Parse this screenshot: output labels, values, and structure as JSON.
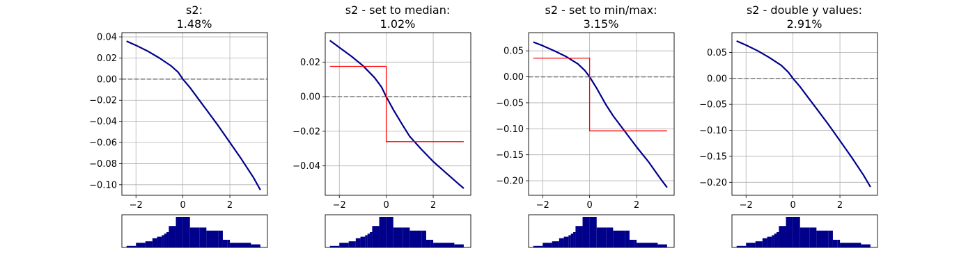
{
  "figure": {
    "background": "#ffffff",
    "colors": {
      "curve": "#00008b",
      "step": "#ff0000",
      "zero_line": "#808080",
      "grid": "#b0b0b0",
      "hist": "#00008b"
    }
  },
  "chart_data": [
    {
      "type": "line",
      "title_line1": "s2:",
      "title_line2": "1.48%",
      "xlim": [
        -2.6,
        3.6
      ],
      "ylim": [
        -0.11,
        0.044
      ],
      "xticks": [
        -2,
        0,
        2
      ],
      "yticks": [
        0.04,
        0.02,
        0.0,
        -0.02,
        -0.04,
        -0.06,
        -0.08,
        -0.1
      ],
      "ytick_labels": [
        "0.04",
        "0.02",
        "0.00",
        "−0.02",
        "−0.04",
        "−0.06",
        "−0.08",
        "−0.10"
      ],
      "grid": true,
      "series": [
        {
          "style": "curve",
          "x": [
            -2.4,
            -2.0,
            -1.5,
            -1.0,
            -0.5,
            -0.2,
            0.0,
            0.3,
            0.7,
            1.0,
            1.5,
            2.0,
            2.5,
            3.0,
            3.3
          ],
          "y": [
            0.036,
            0.032,
            0.0265,
            0.02,
            0.0125,
            0.0065,
            0.0,
            -0.008,
            -0.02,
            -0.029,
            -0.044,
            -0.06,
            -0.076,
            -0.093,
            -0.105
          ]
        }
      ]
    },
    {
      "type": "line",
      "title_line1": "s2 - set to median:",
      "title_line2": "1.02%",
      "xlim": [
        -2.6,
        3.6
      ],
      "ylim": [
        -0.057,
        0.037
      ],
      "xticks": [
        -2,
        0,
        2
      ],
      "yticks": [
        0.02,
        0.0,
        -0.02,
        -0.04
      ],
      "ytick_labels": [
        "0.02",
        "0.00",
        "−0.02",
        "−0.04"
      ],
      "grid": true,
      "series": [
        {
          "style": "curve",
          "x": [
            -2.4,
            -2.0,
            -1.5,
            -1.0,
            -0.5,
            -0.2,
            0.0,
            0.3,
            0.7,
            1.0,
            1.5,
            2.0,
            2.5,
            3.0,
            3.3
          ],
          "y": [
            0.0325,
            0.0285,
            0.0235,
            0.018,
            0.011,
            0.0055,
            0.0,
            -0.0075,
            -0.0165,
            -0.023,
            -0.0305,
            -0.0375,
            -0.0435,
            -0.0495,
            -0.053
          ]
        },
        {
          "style": "step",
          "x": [
            -2.4,
            0.0,
            0.0,
            3.3
          ],
          "y": [
            0.0175,
            0.0175,
            -0.026,
            -0.026
          ]
        }
      ]
    },
    {
      "type": "line",
      "title_line1": "s2 - set to min/max:",
      "title_line2": "3.15%",
      "xlim": [
        -2.6,
        3.6
      ],
      "ylim": [
        -0.228,
        0.085
      ],
      "xticks": [
        -2,
        0,
        2
      ],
      "yticks": [
        0.05,
        0.0,
        -0.05,
        -0.1,
        -0.15,
        -0.2
      ],
      "ytick_labels": [
        "0.05",
        "0.00",
        "−0.05",
        "−0.10",
        "−0.15",
        "−0.20"
      ],
      "grid": true,
      "series": [
        {
          "style": "curve",
          "x": [
            -2.4,
            -2.0,
            -1.5,
            -1.0,
            -0.5,
            -0.2,
            0.0,
            0.3,
            0.7,
            1.0,
            1.5,
            2.0,
            2.5,
            3.0,
            3.3
          ],
          "y": [
            0.067,
            0.06,
            0.05,
            0.039,
            0.025,
            0.012,
            0.0,
            -0.022,
            -0.054,
            -0.075,
            -0.105,
            -0.135,
            -0.163,
            -0.195,
            -0.213
          ]
        },
        {
          "style": "step",
          "x": [
            -2.4,
            0.0,
            0.0,
            3.3
          ],
          "y": [
            0.036,
            0.036,
            -0.104,
            -0.104
          ]
        }
      ]
    },
    {
      "type": "line",
      "title_line1": "s2 - double y values:",
      "title_line2": "2.91%",
      "xlim": [
        -2.6,
        3.6
      ],
      "ylim": [
        -0.225,
        0.088
      ],
      "xticks": [
        -2,
        0,
        2
      ],
      "yticks": [
        0.05,
        0.0,
        -0.05,
        -0.1,
        -0.15,
        -0.2
      ],
      "ytick_labels": [
        "0.05",
        "0.00",
        "−0.05",
        "−0.10",
        "−0.15",
        "−0.20"
      ],
      "grid": true,
      "series": [
        {
          "style": "step",
          "x": [
            -2.4,
            -2.0,
            -1.5,
            -1.0,
            -0.5,
            -0.2,
            0.0,
            0.3,
            0.7,
            1.0,
            1.5,
            2.0,
            2.5,
            3.0,
            3.3
          ],
          "y": [
            0.072,
            0.064,
            0.053,
            0.04,
            0.025,
            0.012,
            0.0,
            -0.016,
            -0.04,
            -0.058,
            -0.088,
            -0.12,
            -0.152,
            -0.186,
            -0.209
          ]
        },
        {
          "style": "curve",
          "x": [
            -2.4,
            -2.0,
            -1.5,
            -1.0,
            -0.5,
            -0.2,
            0.0,
            0.3,
            0.7,
            1.0,
            1.5,
            2.0,
            2.5,
            3.0,
            3.3
          ],
          "y": [
            0.072,
            0.064,
            0.053,
            0.04,
            0.025,
            0.012,
            0.0,
            -0.016,
            -0.04,
            -0.058,
            -0.088,
            -0.12,
            -0.152,
            -0.186,
            -0.209
          ]
        }
      ]
    }
  ],
  "histogram": {
    "type": "bar",
    "bin_edges": [
      -2.4,
      -2.0,
      -1.6,
      -1.3,
      -1.1,
      -0.9,
      -0.8,
      -0.7,
      -0.6,
      -0.3,
      0.0,
      0.3,
      0.7,
      1.0,
      1.5,
      1.7,
      1.9,
      2.0,
      2.9,
      3.3
    ],
    "counts": [
      1,
      3,
      4,
      6,
      7,
      8,
      9,
      10,
      14,
      20,
      20,
      13,
      13,
      11,
      11,
      5,
      5,
      3,
      2
    ]
  }
}
